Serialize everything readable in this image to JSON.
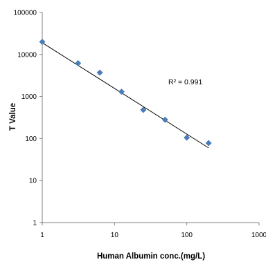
{
  "chart_data": {
    "type": "scatter",
    "title": "",
    "xlabel": "Human Albumin conc.(mg/L)",
    "ylabel": "T Value",
    "x_scale": "log",
    "y_scale": "log",
    "xlim": [
      1,
      1000
    ],
    "ylim": [
      1,
      100000
    ],
    "x_tick_labels": [
      "1",
      "10",
      "100",
      "1000"
    ],
    "y_tick_labels": [
      "1",
      "10",
      "100",
      "1000",
      "10000",
      "100000"
    ],
    "grid": false,
    "legend": "none",
    "series": [
      {
        "x": [
          1,
          3.13,
          6.25,
          12.5,
          25,
          50,
          100,
          200
        ],
        "y": [
          20000,
          6200,
          3700,
          1300,
          480,
          280,
          105,
          78
        ],
        "marker": "diamond",
        "color": "#4a7ebb"
      }
    ],
    "trendline": {
      "type": "power",
      "x_range": [
        1,
        200
      ],
      "y_at_start": 19000,
      "y_at_end": 60,
      "color": "#000000"
    },
    "annotation": "R² = 0.991"
  }
}
